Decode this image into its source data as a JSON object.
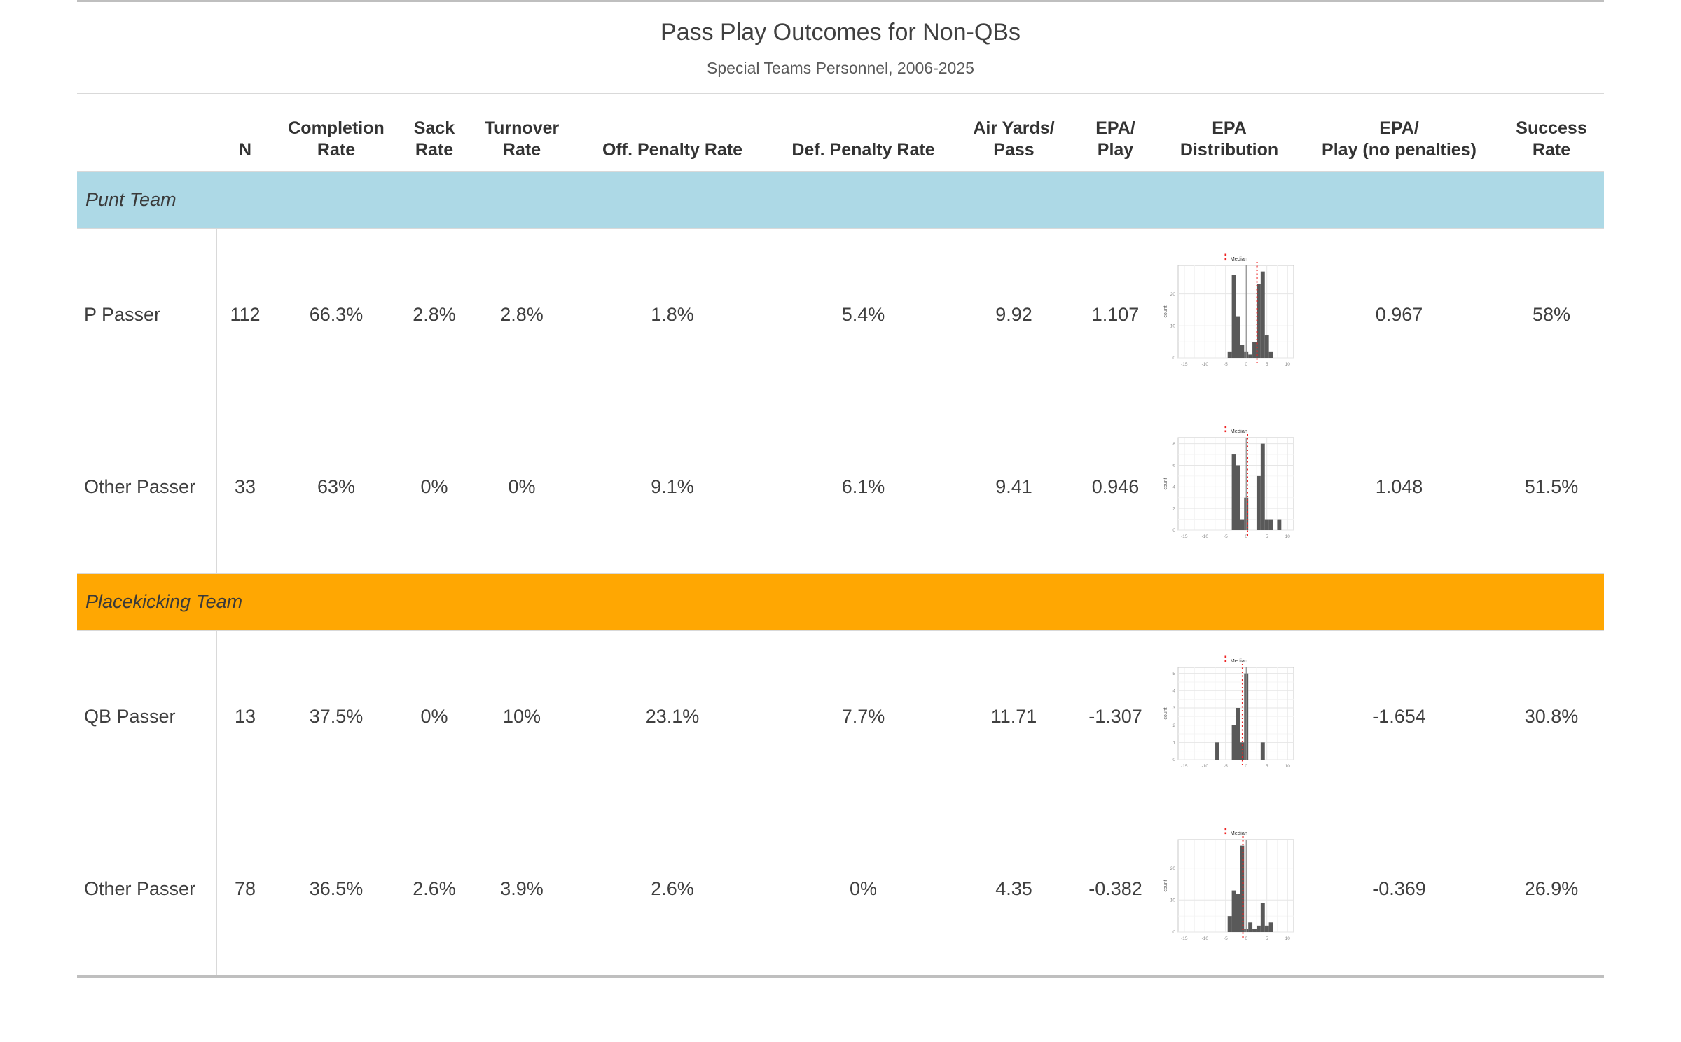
{
  "title": "Pass Play Outcomes for Non-QBs",
  "subtitle": "Special Teams Personnel, 2006-2025",
  "colors": {
    "punt_band": "#ADD9E6",
    "placekick_band": "#FFA702",
    "bar_fill": "#595959",
    "median_line": "#EE2222",
    "rule_heavy": "#BFBFBF",
    "rule_light": "#D9D9D9"
  },
  "table": {
    "columns": [
      {
        "id": "label",
        "line1": "",
        "line2": ""
      },
      {
        "id": "n",
        "line1": "",
        "line2": "N"
      },
      {
        "id": "completion_rate",
        "line1": "Completion",
        "line2": "Rate"
      },
      {
        "id": "sack_rate",
        "line1": "Sack",
        "line2": "Rate"
      },
      {
        "id": "turnover_rate",
        "line1": "Turnover",
        "line2": "Rate"
      },
      {
        "id": "off_penalty_rate",
        "line1": "",
        "line2": "Off. Penalty Rate"
      },
      {
        "id": "def_penalty_rate",
        "line1": "",
        "line2": "Def. Penalty Rate"
      },
      {
        "id": "air_yards_pass",
        "line1": "Air Yards/",
        "line2": "Pass"
      },
      {
        "id": "epa_play",
        "line1": "EPA/",
        "line2": "Play"
      },
      {
        "id": "epa_distribution",
        "line1": "EPA",
        "line2": "Distribution"
      },
      {
        "id": "epa_play_no_penalties",
        "line1": "EPA/",
        "line2": "Play (no penalties)"
      },
      {
        "id": "success_rate",
        "line1": "Success",
        "line2": "Rate"
      }
    ],
    "groups": [
      {
        "label": "Punt Team",
        "rows": [
          {
            "label": "P Passer",
            "cells": {
              "n": "112",
              "completion_rate": "66.3%",
              "sack_rate": "2.8%",
              "turnover_rate": "2.8%",
              "off_penalty_rate": "1.8%",
              "def_penalty_rate": "5.4%",
              "air_yards_pass": "9.92",
              "epa_play": "1.107",
              "epa_play_no_penalties": "0.967",
              "success_rate": "58%"
            }
          },
          {
            "label": "Other Passer",
            "cells": {
              "n": "33",
              "completion_rate": "63%",
              "sack_rate": "0%",
              "turnover_rate": "0%",
              "off_penalty_rate": "9.1%",
              "def_penalty_rate": "6.1%",
              "air_yards_pass": "9.41",
              "epa_play": "0.946",
              "epa_play_no_penalties": "1.048",
              "success_rate": "51.5%"
            }
          }
        ]
      },
      {
        "label": "Placekicking Team",
        "rows": [
          {
            "label": "QB Passer",
            "cells": {
              "n": "13",
              "completion_rate": "37.5%",
              "sack_rate": "0%",
              "turnover_rate": "10%",
              "off_penalty_rate": "23.1%",
              "def_penalty_rate": "7.7%",
              "air_yards_pass": "11.71",
              "epa_play": "-1.307",
              "epa_play_no_penalties": "-1.654",
              "success_rate": "30.8%"
            }
          },
          {
            "label": "Other Passer",
            "cells": {
              "n": "78",
              "completion_rate": "36.5%",
              "sack_rate": "2.6%",
              "turnover_rate": "3.9%",
              "off_penalty_rate": "2.6%",
              "def_penalty_rate": "0%",
              "air_yards_pass": "4.35",
              "epa_play": "-0.382",
              "epa_play_no_penalties": "-0.369",
              "success_rate": "26.9%"
            }
          }
        ]
      }
    ]
  },
  "chart_data": [
    {
      "id": "epa-hist-punt-p-passer",
      "type": "histogram",
      "legend": "Median",
      "ylabel": "count",
      "xlim": [
        -16.5,
        11.5
      ],
      "x_ticks": [
        -15,
        -10,
        -5,
        0,
        5,
        10
      ],
      "y_ticks": [
        0,
        10,
        20
      ],
      "ymax": 27,
      "bin_width": 1,
      "bin_centers": [
        -4,
        -3,
        -2,
        -1,
        0,
        1,
        2,
        3,
        4,
        5,
        6
      ],
      "counts": [
        2,
        26,
        13,
        4,
        2,
        1,
        5,
        23,
        27,
        7,
        2
      ],
      "median_x": 2.6,
      "reference_line_x": 0
    },
    {
      "id": "epa-hist-punt-other-passer",
      "type": "histogram",
      "legend": "Median",
      "ylabel": "count",
      "xlim": [
        -16.5,
        11.5
      ],
      "x_ticks": [
        -15,
        -10,
        -5,
        0,
        5,
        10
      ],
      "y_ticks": [
        0,
        2,
        4,
        6,
        8
      ],
      "ymax": 8,
      "bin_width": 1,
      "bin_centers": [
        -3,
        -2,
        -1,
        0,
        3,
        4,
        5,
        6,
        8
      ],
      "counts": [
        7,
        6,
        1,
        3,
        5,
        8,
        1,
        1,
        1
      ],
      "median_x": 0.3,
      "reference_line_x": 0
    },
    {
      "id": "epa-hist-kick-qb-passer",
      "type": "histogram",
      "legend": "Median",
      "ylabel": "count",
      "xlim": [
        -16.5,
        11.5
      ],
      "x_ticks": [
        -15,
        -10,
        -5,
        0,
        5,
        10
      ],
      "y_ticks": [
        0,
        1,
        2,
        3,
        4,
        5
      ],
      "ymax": 5,
      "bin_width": 1,
      "bin_centers": [
        -7,
        -3,
        -2,
        -1,
        0,
        4
      ],
      "counts": [
        1,
        2,
        3,
        1,
        5,
        1
      ],
      "median_x": -0.9,
      "reference_line_x": 0
    },
    {
      "id": "epa-hist-kick-other-passer",
      "type": "histogram",
      "legend": "Median",
      "ylabel": "count",
      "xlim": [
        -16.5,
        11.5
      ],
      "x_ticks": [
        -15,
        -10,
        -5,
        0,
        5,
        10
      ],
      "y_ticks": [
        0,
        10,
        20
      ],
      "ymax": 27,
      "bin_width": 1,
      "bin_centers": [
        -4,
        -3,
        -2,
        -1,
        0,
        1,
        2,
        3,
        4,
        5,
        6
      ],
      "counts": [
        5,
        13,
        12,
        27,
        1,
        3,
        1,
        2,
        9,
        2,
        3
      ],
      "median_x": -0.8,
      "reference_line_x": 0
    }
  ]
}
